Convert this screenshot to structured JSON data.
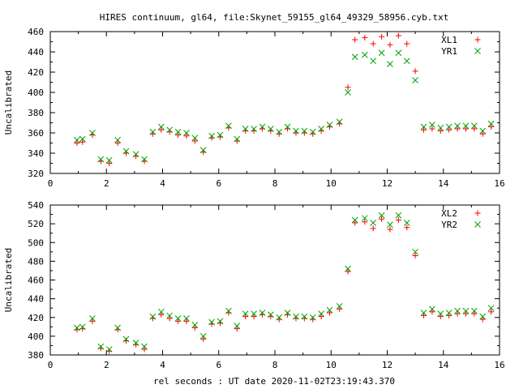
{
  "title": "HIRES continuum, gl64, file:Skynet_59155_gl64_49329_58956.cyb.txt",
  "xlabel": "rel seconds : UT date 2020-11-02T23:19:43.370",
  "colors": {
    "red": "#ff0000",
    "green": "#00a000"
  },
  "chart_data": [
    {
      "type": "scatter",
      "ylabel": "Uncalibrated",
      "xlim": [
        0,
        16
      ],
      "ylim": [
        320,
        460
      ],
      "xticks": [
        0,
        2,
        4,
        6,
        8,
        10,
        12,
        14,
        16
      ],
      "yticks": [
        320,
        340,
        360,
        380,
        400,
        420,
        440,
        460
      ],
      "grid": false,
      "legend": "top-right",
      "x": [
        0.95,
        1.15,
        1.5,
        1.8,
        2.1,
        2.4,
        2.7,
        3.05,
        3.35,
        3.65,
        3.95,
        4.25,
        4.55,
        4.85,
        5.15,
        5.45,
        5.75,
        6.05,
        6.35,
        6.65,
        6.95,
        7.25,
        7.55,
        7.85,
        8.15,
        8.45,
        8.75,
        9.05,
        9.35,
        9.65,
        9.95,
        10.3,
        10.6,
        10.85,
        11.2,
        11.5,
        11.8,
        12.1,
        12.4,
        12.7,
        13.0,
        13.3,
        13.6,
        13.9,
        14.2,
        14.5,
        14.8,
        15.1,
        15.4,
        15.7
      ],
      "series": [
        {
          "name": "XL1",
          "color": "red",
          "marker": "plus",
          "values": [
            350,
            351,
            358,
            332,
            330,
            350,
            340,
            337,
            332,
            359,
            363,
            361,
            358,
            357,
            352,
            341,
            355,
            356,
            365,
            352,
            362,
            362,
            364,
            362,
            359,
            364,
            360,
            360,
            359,
            362,
            366,
            369,
            405,
            452,
            454,
            448,
            455,
            447,
            456,
            448,
            421,
            363,
            364,
            362,
            363,
            364,
            364,
            364,
            359,
            366
          ]
        },
        {
          "name": "YR1",
          "color": "green",
          "marker": "cross",
          "values": [
            353,
            354,
            360,
            334,
            333,
            353,
            342,
            339,
            334,
            361,
            366,
            363,
            361,
            360,
            355,
            343,
            357,
            358,
            367,
            354,
            364,
            364,
            366,
            364,
            361,
            366,
            362,
            362,
            361,
            364,
            368,
            371,
            400,
            435,
            437,
            431,
            439,
            428,
            439,
            431,
            412,
            366,
            368,
            365,
            366,
            367,
            367,
            367,
            362,
            369
          ]
        }
      ]
    },
    {
      "type": "scatter",
      "ylabel": "Uncalibrated",
      "xlim": [
        0,
        16
      ],
      "ylim": [
        380,
        540
      ],
      "xticks": [
        0,
        2,
        4,
        6,
        8,
        10,
        12,
        14,
        16
      ],
      "yticks": [
        380,
        400,
        420,
        440,
        460,
        480,
        500,
        520,
        540
      ],
      "grid": false,
      "legend": "top-right",
      "x": [
        0.95,
        1.15,
        1.5,
        1.8,
        2.1,
        2.4,
        2.7,
        3.05,
        3.35,
        3.65,
        3.95,
        4.25,
        4.55,
        4.85,
        5.15,
        5.45,
        5.75,
        6.05,
        6.35,
        6.65,
        6.95,
        7.25,
        7.55,
        7.85,
        8.15,
        8.45,
        8.75,
        9.05,
        9.35,
        9.65,
        9.95,
        10.3,
        10.6,
        10.85,
        11.2,
        11.5,
        11.8,
        12.1,
        12.4,
        12.7,
        13.0,
        13.3,
        13.6,
        13.9,
        14.2,
        14.5,
        14.8,
        15.1,
        15.4,
        15.7
      ],
      "series": [
        {
          "name": "XL2",
          "color": "red",
          "marker": "plus",
          "values": [
            407,
            408,
            416,
            387,
            384,
            407,
            395,
            391,
            386,
            419,
            423,
            419,
            416,
            416,
            409,
            397,
            413,
            414,
            425,
            408,
            421,
            421,
            423,
            421,
            418,
            423,
            419,
            419,
            418,
            421,
            425,
            429,
            469,
            521,
            522,
            515,
            525,
            514,
            524,
            516,
            486,
            422,
            426,
            421,
            422,
            424,
            424,
            424,
            418,
            426
          ]
        },
        {
          "name": "YR2",
          "color": "green",
          "marker": "cross",
          "values": [
            409,
            410,
            419,
            389,
            386,
            409,
            397,
            393,
            389,
            421,
            426,
            422,
            419,
            419,
            412,
            400,
            415,
            416,
            427,
            411,
            424,
            424,
            425,
            423,
            420,
            425,
            421,
            421,
            420,
            424,
            428,
            432,
            472,
            524,
            526,
            521,
            529,
            519,
            529,
            521,
            490,
            425,
            429,
            424,
            425,
            427,
            427,
            427,
            421,
            430
          ]
        }
      ]
    }
  ]
}
